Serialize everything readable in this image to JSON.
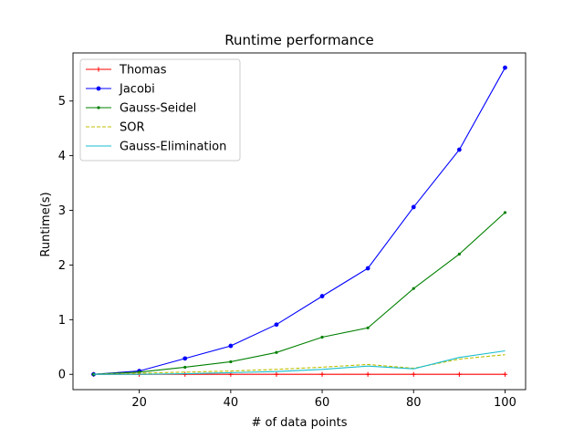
{
  "chart_data": {
    "type": "line",
    "title": "Runtime performance",
    "xlabel": "# of data points",
    "ylabel": "Runtime(s)",
    "xlim": [
      5.5,
      104.5
    ],
    "ylim": [
      -0.28,
      5.88
    ],
    "xticks": [
      20,
      40,
      60,
      80,
      100
    ],
    "yticks": [
      0,
      1,
      2,
      3,
      4,
      5
    ],
    "grid": false,
    "legend_position": "upper-left",
    "x": [
      10,
      20,
      30,
      40,
      50,
      60,
      70,
      80,
      90,
      100
    ],
    "series": [
      {
        "name": "Thomas",
        "color": "#ff0000",
        "marker": "plus",
        "dash": "solid",
        "values": [
          0.0,
          0.0,
          0.0,
          0.0,
          0.0,
          0.0,
          0.0,
          0.0,
          0.0,
          0.0
        ]
      },
      {
        "name": "Jacobi",
        "color": "#0000ff",
        "marker": "circle",
        "dash": "solid",
        "values": [
          0.0,
          0.06,
          0.29,
          0.52,
          0.91,
          1.43,
          1.94,
          3.06,
          4.11,
          5.61
        ]
      },
      {
        "name": "Gauss-Seidel",
        "color": "#008000",
        "marker": "dot",
        "dash": "solid",
        "values": [
          0.0,
          0.04,
          0.13,
          0.23,
          0.4,
          0.68,
          0.85,
          1.57,
          2.2,
          2.96
        ]
      },
      {
        "name": "SOR",
        "color": "#bfbf00",
        "marker": "none",
        "dash": "dashed",
        "values": [
          0.0,
          0.02,
          0.04,
          0.06,
          0.09,
          0.13,
          0.18,
          0.11,
          0.28,
          0.36
        ]
      },
      {
        "name": "Gauss-Elimination",
        "color": "#17becf",
        "marker": "none",
        "dash": "solid",
        "values": [
          0.0,
          0.0,
          0.01,
          0.03,
          0.05,
          0.09,
          0.15,
          0.1,
          0.31,
          0.43
        ]
      }
    ]
  }
}
